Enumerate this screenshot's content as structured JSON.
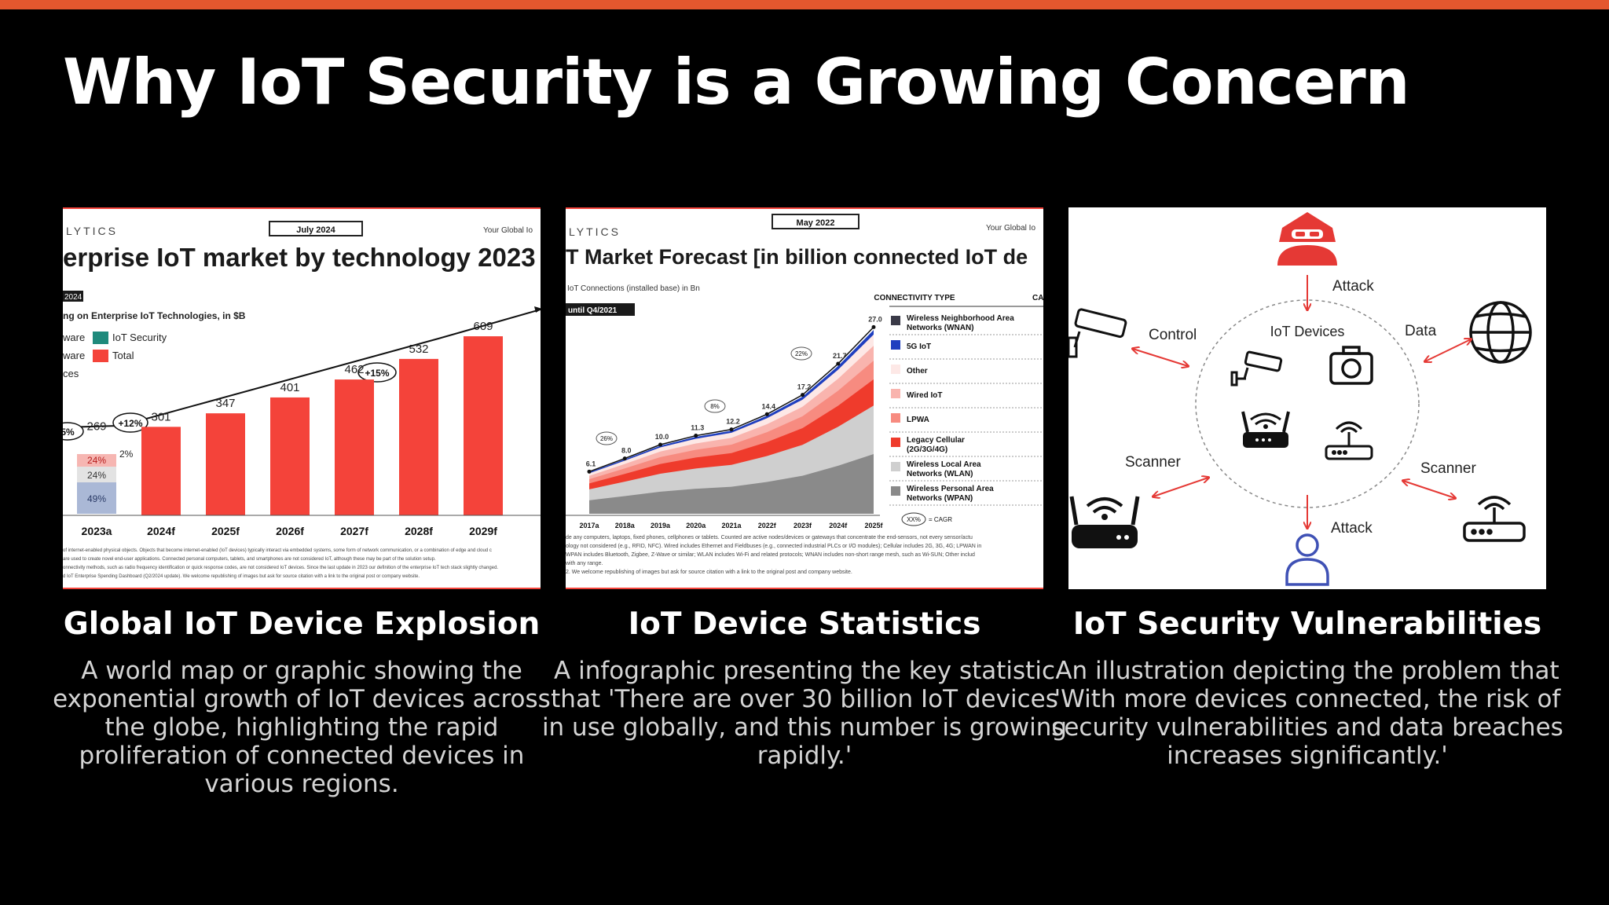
{
  "slide": {
    "title": "Why IoT Security is a Growing Concern"
  },
  "colors": {
    "accent": "#e4572e",
    "bar_red": "#f4433a",
    "security_teal": "#1f8a7c",
    "diagram_red": "#e53935",
    "diagram_blue": "#3f51b5"
  },
  "cards": [
    {
      "title": "Global IoT Device Explosion",
      "description": "A world map or graphic showing the exponential growth of IoT devices across the globe, highlighting the rapid proliferation of connected devices in various regions."
    },
    {
      "title": "IoT Device Statistics",
      "description": "A infographic presenting the key statistic that 'There are over 30 billion IoT devices in use globally, and this number is growing rapidly.'"
    },
    {
      "title": "IoT Security Vulnerabilities",
      "description": "An illustration depicting the problem that 'With more devices connected, the risk of security vulnerabilities and data breaches increases significantly.'"
    }
  ],
  "panel1": {
    "brand": "LYTICS",
    "date_badge": "July 2024",
    "corner_text": "Your Global Io",
    "heading": "erprise IoT market by technology 2023",
    "year_badge": "2024",
    "subtitle": "ng on Enterprise IoT Technologies, in $B",
    "legend": [
      {
        "left_text": "ware",
        "label": "IoT Security",
        "color": "#1f8a7c"
      },
      {
        "left_text": "ware",
        "label": "Total",
        "color": "#f4433a"
      }
    ],
    "legend_extra": "ces",
    "cagr_labels": [
      "5%",
      "+12%",
      "+15%"
    ],
    "stack_labels": [
      "24%",
      "24%",
      "49%"
    ],
    "stack_side_label": "2%",
    "footnote_lines": [
      "of internet-enabled physical objects. Objects that become internet-enabled (IoT devices) typically interact via embedded systems, some form of network communication, or a combination of edge and cloud c",
      "are used to create novel end-user applications. Connected personal computers, tablets, and smartphones are not considered IoT, although these may be part of the solution setup.",
      "onnectivity methods, such as radio frequency identification or quick response codes, are not considered IoT devices. Since the last update in 2023 our definition of the enterprise IoT tech stack slightly changed.",
      "d IoT Enterprise Spending Dashboard (Q2/2024 update). We welcome republishing of images but ask for source citation with a link to the original post or company website."
    ]
  },
  "chart_data": [
    {
      "type": "bar",
      "title": "erprise IoT market by technology 2023",
      "categories": [
        "2023a",
        "2024f",
        "2025f",
        "2026f",
        "2027f",
        "2028f",
        "2029f"
      ],
      "values": [
        269,
        301,
        347,
        401,
        462,
        532,
        609
      ],
      "ylim": [
        0,
        700
      ]
    },
    {
      "type": "area",
      "title": "T Market Forecast [in billion connected IoT de",
      "categories": [
        "2017a",
        "2018a",
        "2019a",
        "2020a",
        "2021a",
        "2022f",
        "2023f",
        "2024f",
        "2025f"
      ],
      "values": [
        6.1,
        8.0,
        10.0,
        11.3,
        12.2,
        14.4,
        17.2,
        21.7,
        27.0
      ],
      "ylim": [
        0,
        30
      ],
      "cagr_labels": [
        "26%",
        "8%",
        "22%"
      ],
      "legend_title": "CONNECTIVITY TYPE",
      "legend": [
        {
          "label": "Wireless Neighborhood Area Networks (WNAN)",
          "color": "#3a3a48"
        },
        {
          "label": "5G IoT",
          "color": "#1f3fbf"
        },
        {
          "label": "Other",
          "color": "#fde8e6"
        },
        {
          "label": "Wired IoT",
          "color": "#f9b4ae"
        },
        {
          "label": "LPWA",
          "color": "#f78b80"
        },
        {
          "label": "Legacy Cellular (2G/3G/4G)",
          "color": "#ef3b2c"
        },
        {
          "label": "Wireless Local Area Networks (WLAN)",
          "color": "#cfcfcf"
        },
        {
          "label": "Wireless Personal Area Networks (WPAN)",
          "color": "#8a8a8a"
        }
      ]
    }
  ],
  "panel2": {
    "brand": "LYTICS",
    "date_badge": "May 2022",
    "corner_text": "Your Global Io",
    "heading": "T Market Forecast [in billion connected IoT de",
    "subtitle": "IoT Connections (installed base) in Bn",
    "period_badge": "until Q4/2021",
    "legend_cut_header": "CA",
    "cagr_key_badge": "XX%",
    "cagr_key_text": "= CAGR",
    "footnote_lines": [
      "de any computers, laptops, fixed phones, cellphones or tablets. Counted are active nodes/devices or gateways that concentrate the end-sensors, not every sensor/actu",
      "ology not considered (e.g., RFID, NFC). Wired includes Ethernet and Fieldbuses (e.g., connected industrial PLCs or I/O modules); Cellular includes 2G, 3G, 4G; LPWAN in",
      "WPAN includes Bluetooth, Zigbee, Z-Wave or similar; WLAN includes Wi-Fi and related protocols; WNAN includes non-short range mesh, such as Wi-SUN; Other includ",
      "with any range.",
      "2. We welcome republishing of images but ask for source citation with a link to the original post and company website."
    ]
  },
  "panel3": {
    "center_label": "IoT Devices",
    "labels": {
      "attack_top": "Attack",
      "attack_bottom": "Attack",
      "control": "Control",
      "data": "Data",
      "scanner_left": "Scanner",
      "scanner_right": "Scanner"
    },
    "icons": [
      "hacker-icon",
      "security-camera-icon",
      "globe-icon",
      "camera-icon",
      "wifi-router-icon",
      "user-icon"
    ]
  }
}
